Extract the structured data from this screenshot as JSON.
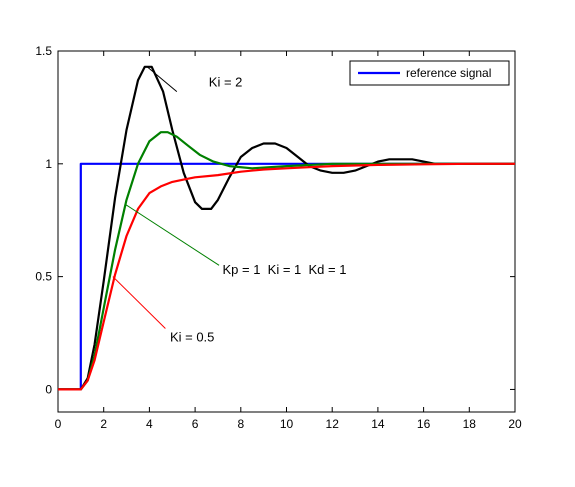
{
  "chart_data": {
    "type": "line",
    "title": "",
    "xlabel": "",
    "ylabel": "",
    "xlim": [
      0,
      20
    ],
    "ylim": [
      -0.1,
      1.5
    ],
    "xticks": [
      0,
      2,
      4,
      6,
      8,
      10,
      12,
      14,
      16,
      18,
      20
    ],
    "xtick_labels": [
      "0",
      "2",
      "4",
      "6",
      "8",
      "10",
      "12",
      "14",
      "16",
      "18",
      "20"
    ],
    "yticks": [
      0,
      0.5,
      1,
      1.5
    ],
    "ytick_labels": [
      "0",
      "0.5",
      "1",
      "1.5"
    ],
    "grid": false,
    "legend": {
      "placement": "top-right",
      "entries": [
        "reference signal"
      ]
    },
    "series": [
      {
        "name": "reference signal",
        "color": "#0000ff",
        "x": [
          0,
          1,
          1,
          20
        ],
        "y": [
          0,
          0,
          1,
          1
        ]
      },
      {
        "name": "Ki = 2",
        "color": "#000000",
        "x": [
          0,
          1,
          1.3,
          1.6,
          2,
          2.5,
          3,
          3.5,
          3.8,
          4.1,
          4.6,
          5,
          5.5,
          6,
          6.3,
          6.7,
          7,
          7.5,
          8,
          8.5,
          9,
          9.5,
          10,
          10.5,
          11,
          11.5,
          12,
          12.5,
          13,
          13.5,
          14,
          14.5,
          15,
          15.5,
          16,
          16.5,
          17,
          17.5,
          18,
          18.5,
          19,
          19.5,
          20
        ],
        "y": [
          0,
          0,
          0.05,
          0.2,
          0.48,
          0.85,
          1.15,
          1.37,
          1.43,
          1.43,
          1.32,
          1.15,
          0.96,
          0.83,
          0.8,
          0.8,
          0.84,
          0.94,
          1.03,
          1.07,
          1.09,
          1.09,
          1.07,
          1.03,
          0.99,
          0.97,
          0.96,
          0.96,
          0.97,
          0.99,
          1.01,
          1.02,
          1.02,
          1.02,
          1.01,
          1.0,
          1.0,
          1.0,
          1.0,
          1.0,
          1.0,
          1.0,
          1.0
        ]
      },
      {
        "name": "Kp = 1  Ki = 1  Kd = 1",
        "color": "#008000",
        "x": [
          0,
          1,
          1.3,
          1.6,
          2,
          2.5,
          3,
          3.5,
          4,
          4.5,
          4.8,
          5.2,
          5.7,
          6.2,
          6.8,
          7.5,
          8.5,
          10,
          12,
          14,
          16,
          18,
          20
        ],
        "y": [
          0,
          0,
          0.04,
          0.15,
          0.36,
          0.62,
          0.84,
          1.0,
          1.1,
          1.14,
          1.14,
          1.12,
          1.08,
          1.04,
          1.01,
          0.99,
          0.98,
          0.99,
          1.0,
          1.0,
          1.0,
          1.0,
          1.0
        ]
      },
      {
        "name": "Ki = 0.5",
        "color": "#ff0000",
        "x": [
          0,
          1,
          1.3,
          1.6,
          2,
          2.5,
          3,
          3.5,
          4,
          4.5,
          5,
          5.5,
          6,
          7,
          8,
          9,
          10,
          11,
          12,
          14,
          16,
          18,
          20
        ],
        "y": [
          0,
          0,
          0.04,
          0.13,
          0.3,
          0.51,
          0.68,
          0.8,
          0.87,
          0.9,
          0.92,
          0.93,
          0.94,
          0.95,
          0.965,
          0.975,
          0.98,
          0.985,
          0.99,
          0.995,
          0.998,
          1.0,
          1.0
        ]
      }
    ],
    "annotations": [
      {
        "text": "Ki = 2",
        "color": "#000000",
        "target": [
          3.9,
          1.43
        ],
        "label_pos": [
          6.6,
          1.36
        ],
        "arrow_end": [
          5.2,
          1.32
        ]
      },
      {
        "text": "Kp = 1  Ki = 1  Kd = 1",
        "color": "#008000",
        "target": [
          2.95,
          0.82
        ],
        "label_pos": [
          7.2,
          0.53
        ],
        "arrow_end": [
          7.05,
          0.55
        ]
      },
      {
        "text": "Ki = 0.5",
        "color": "#ff0000",
        "target": [
          2.4,
          0.5
        ],
        "label_pos": [
          4.9,
          0.23
        ],
        "arrow_end": [
          4.7,
          0.27
        ]
      }
    ]
  }
}
